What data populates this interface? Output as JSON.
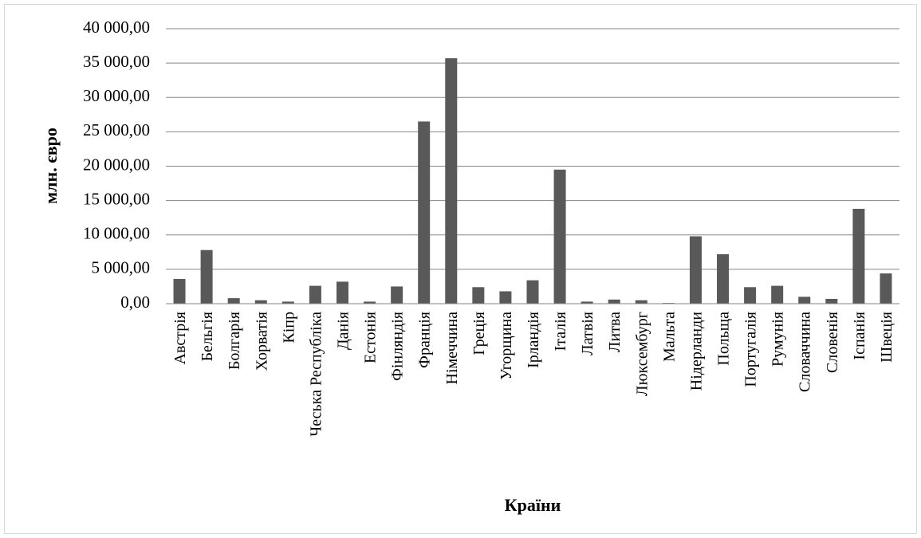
{
  "chart_data": {
    "type": "bar",
    "xlabel": "Країни",
    "ylabel": "млн. євро",
    "ylim": [
      0,
      40000
    ],
    "yticks": [
      "0,00",
      "5 000,00",
      "10 000,00",
      "15 000,00",
      "20 000,00",
      "25 000,00",
      "30 000,00",
      "35 000,00",
      "40 000,00"
    ],
    "grid": true,
    "bar_color": "#595959",
    "categories": [
      "Австрія",
      "Бельгія",
      "Болгарія",
      "Хорватія",
      "Кіпр",
      "Чеська Республіка",
      "Данія",
      "Естонія",
      "Фінляндія",
      "Франція",
      "Німеччина",
      "Греція",
      "Угорщина",
      "Ірландія",
      "Італія",
      "Латвія",
      "Литва",
      "Люксембург",
      "Мальта",
      "Нідерланди",
      "Польща",
      "Португалія",
      "Румунія",
      "Словаччина",
      "Словенія",
      "Іспанія",
      "Швеція"
    ],
    "values": [
      3600,
      7800,
      800,
      500,
      300,
      2600,
      3200,
      300,
      2500,
      26500,
      35700,
      2400,
      1800,
      3400,
      19500,
      300,
      600,
      500,
      100,
      9800,
      7200,
      2400,
      2600,
      1000,
      700,
      13800,
      4400
    ]
  }
}
